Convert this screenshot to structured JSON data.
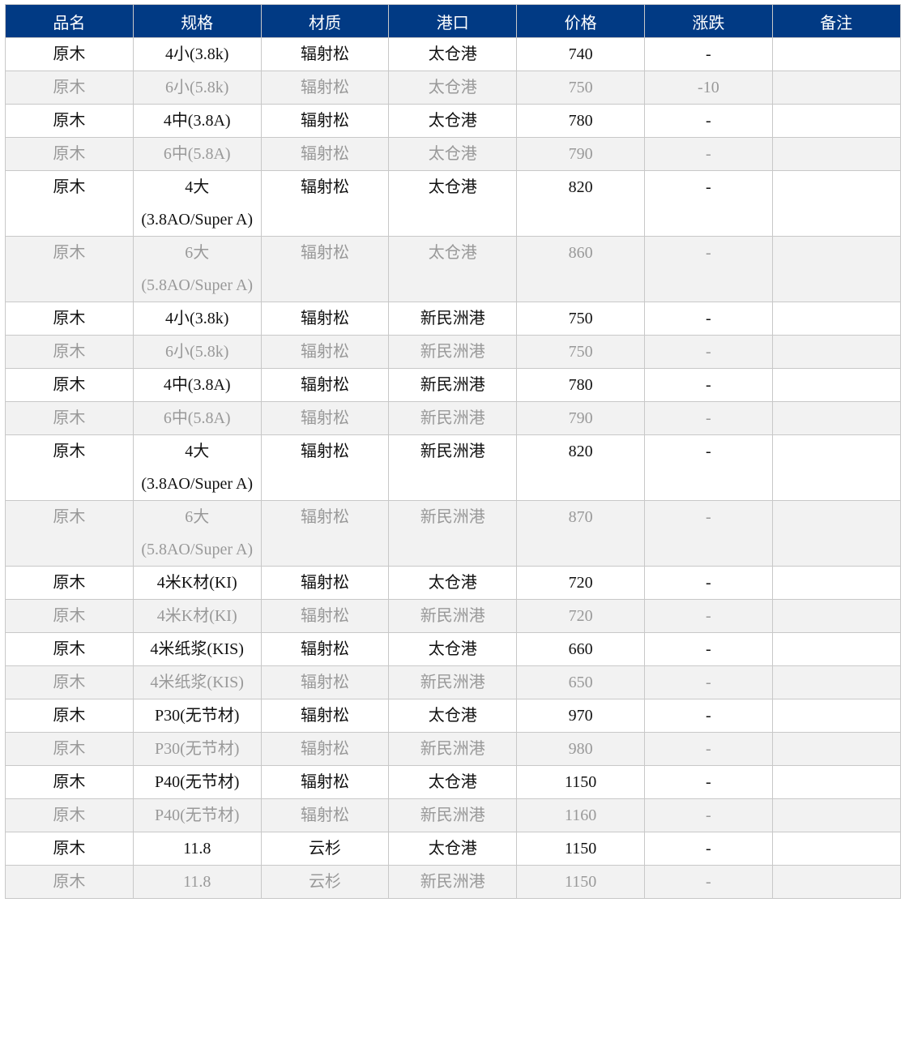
{
  "headers": [
    "品名",
    "规格",
    "材质",
    "港口",
    "价格",
    "涨跌",
    "备注"
  ],
  "rows": [
    [
      "原木",
      "4小(3.8k)",
      "辐射松",
      "太仓港",
      "740",
      "-",
      ""
    ],
    [
      "原木",
      "6小(5.8k)",
      "辐射松",
      "太仓港",
      "750",
      "-10",
      ""
    ],
    [
      "原木",
      "4中(3.8A)",
      "辐射松",
      "太仓港",
      "780",
      "-",
      ""
    ],
    [
      "原木",
      "6中(5.8A)",
      "辐射松",
      "太仓港",
      "790",
      "-",
      ""
    ],
    [
      "原木",
      "4大(3.8AO/Super A)",
      "辐射松",
      "太仓港",
      "820",
      "-",
      ""
    ],
    [
      "原木",
      "6大(5.8AO/Super A)",
      "辐射松",
      "太仓港",
      "860",
      "-",
      ""
    ],
    [
      "原木",
      "4小(3.8k)",
      "辐射松",
      "新民洲港",
      "750",
      "-",
      ""
    ],
    [
      "原木",
      "6小(5.8k)",
      "辐射松",
      "新民洲港",
      "750",
      "-",
      ""
    ],
    [
      "原木",
      "4中(3.8A)",
      "辐射松",
      "新民洲港",
      "780",
      "-",
      ""
    ],
    [
      "原木",
      "6中(5.8A)",
      "辐射松",
      "新民洲港",
      "790",
      "-",
      ""
    ],
    [
      "原木",
      "4大(3.8AO/Super A)",
      "辐射松",
      "新民洲港",
      "820",
      "-",
      ""
    ],
    [
      "原木",
      "6大(5.8AO/Super A)",
      "辐射松",
      "新民洲港",
      "870",
      "-",
      ""
    ],
    [
      "原木",
      "4米K材(KI)",
      "辐射松",
      "太仓港",
      "720",
      "-",
      ""
    ],
    [
      "原木",
      "4米K材(KI)",
      "辐射松",
      "新民洲港",
      "720",
      "-",
      ""
    ],
    [
      "原木",
      "4米纸浆(KIS)",
      "辐射松",
      "太仓港",
      "660",
      "-",
      ""
    ],
    [
      "原木",
      "4米纸浆(KIS)",
      "辐射松",
      "新民洲港",
      "650",
      "-",
      ""
    ],
    [
      "原木",
      "P30(无节材)",
      "辐射松",
      "太仓港",
      "970",
      "-",
      ""
    ],
    [
      "原木",
      "P30(无节材)",
      "辐射松",
      "新民洲港",
      "980",
      "-",
      ""
    ],
    [
      "原木",
      "P40(无节材)",
      "辐射松",
      "太仓港",
      "1150",
      "-",
      ""
    ],
    [
      "原木",
      "P40(无节材)",
      "辐射松",
      "新民洲港",
      "1160",
      "-",
      ""
    ],
    [
      "原木",
      "11.8",
      "云杉",
      "太仓港",
      "1150",
      "-",
      ""
    ],
    [
      "原木",
      "11.8",
      "云杉",
      "新民洲港",
      "1150",
      "-",
      ""
    ]
  ],
  "colors": {
    "header_bg": "#013a84",
    "alt_row_bg": "#f2f2f2",
    "alt_text": "#999999"
  }
}
